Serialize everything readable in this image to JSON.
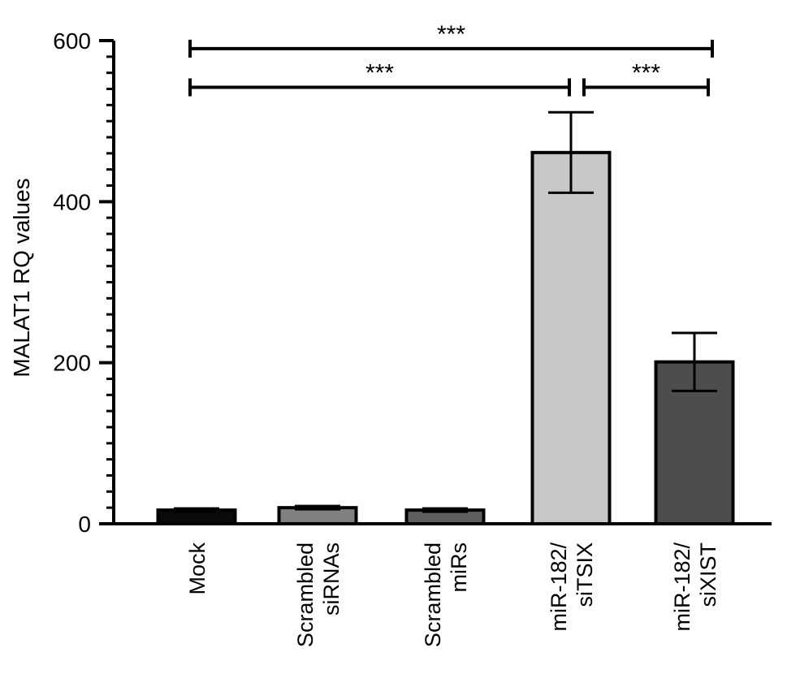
{
  "chart_data": {
    "type": "bar",
    "title": "",
    "xlabel": "",
    "ylabel": "MALAT1 RQ values",
    "ylim": [
      0,
      600
    ],
    "yticks": [
      0,
      200,
      400,
      600
    ],
    "grid": false,
    "categories": [
      [
        "Mock"
      ],
      [
        "Scrambled",
        "siRNAs"
      ],
      [
        "Scrambled",
        "miRs"
      ],
      [
        "miR-182/",
        "siTSIX"
      ],
      [
        "miR-182/",
        "siXIST"
      ]
    ],
    "values": [
      17,
      20,
      17,
      461,
      201
    ],
    "errors": [
      2,
      2,
      2,
      50,
      36
    ],
    "colors": [
      "#0a0a0a",
      "#808080",
      "#5f5f5f",
      "#c8c8c8",
      "#4d4d4d"
    ],
    "significance": [
      {
        "from": 0,
        "to": 4,
        "label": "***",
        "y": 590
      },
      {
        "from": 0,
        "to": 3,
        "label": "***",
        "y": 542
      },
      {
        "from": 3,
        "to": 4,
        "label": "***",
        "y": 542
      }
    ]
  }
}
